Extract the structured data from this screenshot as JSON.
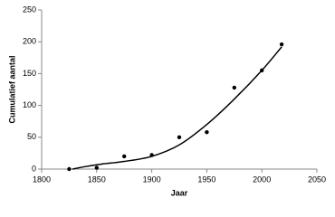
{
  "chart_data": {
    "type": "scatter",
    "x_label": "Jaar",
    "y_label": "Cumulatief aantal",
    "xlim": [
      1800,
      2050
    ],
    "xticks": [
      1800,
      1850,
      1900,
      1950,
      2000,
      2050
    ],
    "ylim": [
      0,
      250
    ],
    "yticks": [
      0,
      50,
      100,
      150,
      200,
      250
    ],
    "grid": false,
    "color": "#000000",
    "x": [
      1825,
      1850,
      1875,
      1900,
      1925,
      1950,
      1975,
      2000,
      2018
    ],
    "values": [
      0,
      2,
      20,
      22,
      50,
      58,
      128,
      155,
      196
    ],
    "trendline": {
      "color": "#000000",
      "x": [
        1828,
        1840,
        1855,
        1875,
        1900,
        1925,
        1950,
        1975,
        2000,
        2018
      ],
      "values": [
        0,
        4,
        8,
        12,
        20,
        38,
        70,
        110,
        155,
        192
      ]
    }
  }
}
